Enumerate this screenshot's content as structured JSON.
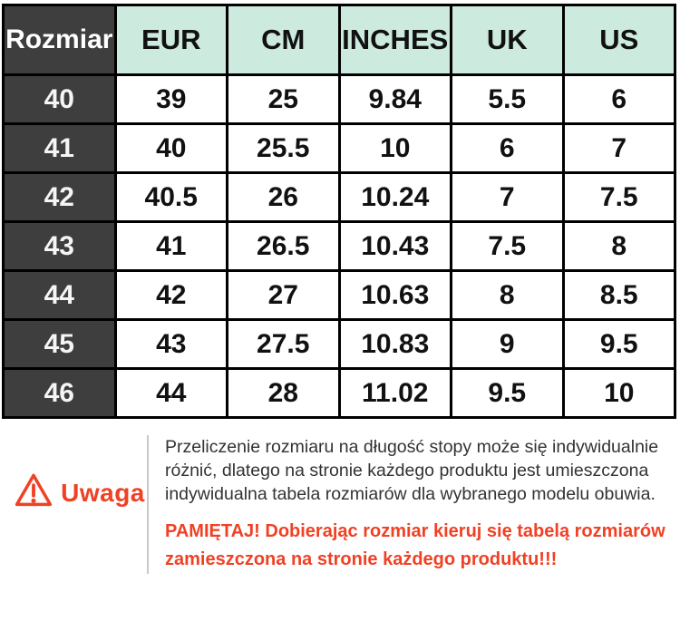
{
  "colors": {
    "header_mint": "#cdeade",
    "dark_cell": "#3e3e3e",
    "border_black": "#000000",
    "accent_red": "#f04124",
    "divider_gray": "#c9c9c9",
    "note_text": "#333333"
  },
  "table": {
    "headers": [
      "Rozmiar",
      "EUR",
      "CM",
      "INCHES",
      "UK",
      "US"
    ],
    "rows": [
      [
        "40",
        "39",
        "25",
        "9.84",
        "5.5",
        "6"
      ],
      [
        "41",
        "40",
        "25.5",
        "10",
        "6",
        "7"
      ],
      [
        "42",
        "40.5",
        "26",
        "10.24",
        "7",
        "7.5"
      ],
      [
        "43",
        "41",
        "26.5",
        "10.43",
        "7.5",
        "8"
      ],
      [
        "44",
        "42",
        "27",
        "10.63",
        "8",
        "8.5"
      ],
      [
        "45",
        "43",
        "27.5",
        "10.83",
        "9",
        "9.5"
      ],
      [
        "46",
        "44",
        "28",
        "11.02",
        "9.5",
        "10"
      ]
    ]
  },
  "warning": {
    "icon": "warning-triangle-icon",
    "label": "Uwaga",
    "paragraph": "Przeliczenie rozmiaru na długość stopy może się indywidualnie różnić, dlatego na stronie każdego produktu jest umieszczona indywidualna tabela rozmiarów dla wybranego modelu obuwia.",
    "emphasis": "PAMIĘTAJ! Dobierając rozmiar kieruj się tabelą rozmiarów zamieszczona na stronie każdego produktu!!!"
  },
  "chart_data": {
    "type": "table",
    "title": "Shoe size conversion chart",
    "columns": [
      "Rozmiar",
      "EUR",
      "CM",
      "INCHES",
      "UK",
      "US"
    ],
    "rows": [
      [
        "40",
        39,
        25,
        9.84,
        5.5,
        6
      ],
      [
        "41",
        40,
        25.5,
        10,
        6,
        7
      ],
      [
        "42",
        40.5,
        26,
        10.24,
        7,
        7.5
      ],
      [
        "43",
        41,
        26.5,
        10.43,
        7.5,
        8
      ],
      [
        "44",
        42,
        27,
        10.63,
        8,
        8.5
      ],
      [
        "45",
        43,
        27.5,
        10.83,
        9,
        9.5
      ],
      [
        "46",
        44,
        28,
        11.02,
        9.5,
        10
      ]
    ]
  }
}
